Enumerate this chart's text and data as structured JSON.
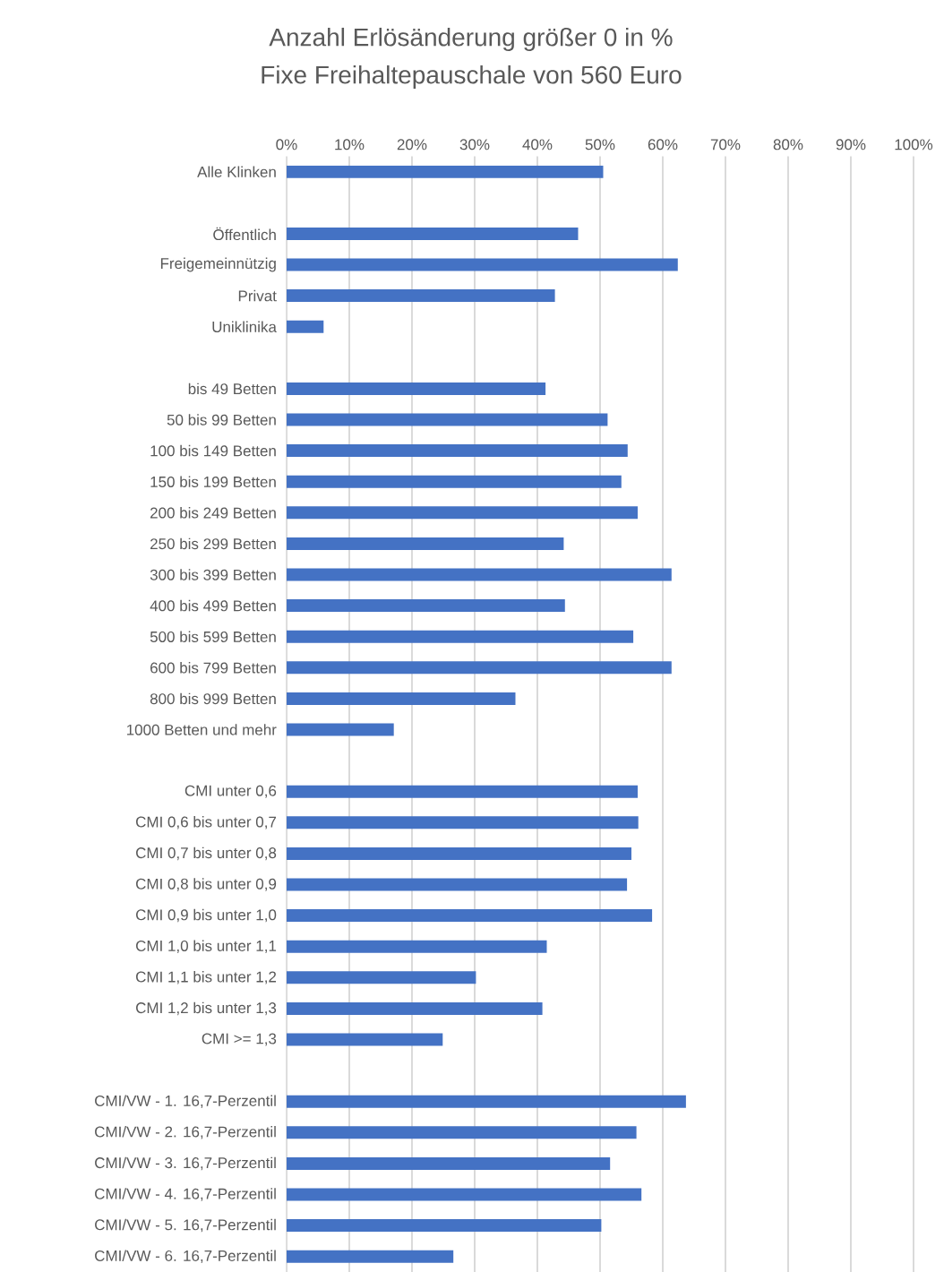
{
  "chart_data": {
    "type": "bar",
    "orientation": "horizontal",
    "title": "Anzahl Erlösänderung größer 0 in %",
    "subtitle": "Fixe Freihaltepauschale von 560 Euro",
    "categories": [
      "Alle Klinken",
      null,
      "Öffentlich",
      "Freigemeinnützig",
      "Privat",
      "Uniklinika",
      null,
      "bis 49 Betten",
      "50 bis 99 Betten",
      "100 bis 149 Betten",
      "150 bis 199 Betten",
      "200 bis 249 Betten",
      "250 bis 299 Betten",
      "300 bis 399 Betten",
      "400 bis 499 Betten",
      "500 bis 599 Betten",
      "600 bis 799 Betten",
      "800 bis 999 Betten",
      "1000 Betten und mehr",
      null,
      "CMI unter 0,6",
      "CMI 0,6 bis unter 0,7",
      "CMI 0,7 bis unter 0,8",
      "CMI 0,8 bis unter 0,9",
      "CMI 0,9 bis unter 1,0",
      "CMI 1,0 bis unter 1,1",
      "CMI 1,1 bis unter 1,2",
      "CMI 1,2 bis unter 1,3",
      "CMI >= 1,3",
      null,
      "CMI/VW - 1. 16,7-Perzentil",
      "CMI/VW - 2. 16,7-Perzentil",
      "CMI/VW - 3. 16,7-Perzentil",
      "CMI/VW - 4. 16,7-Perzentil",
      "CMI/VW - 5. 16,7-Perzentil",
      "CMI/VW - 6. 16,7-Perzentil"
    ],
    "values": [
      50.5,
      null,
      46.5,
      62.4,
      42.8,
      5.9,
      null,
      41.3,
      51.2,
      54.4,
      53.4,
      56.0,
      44.2,
      61.4,
      44.4,
      55.3,
      61.4,
      36.5,
      17.1,
      null,
      56.0,
      56.1,
      55.0,
      54.3,
      58.3,
      41.5,
      30.2,
      40.8,
      24.9,
      null,
      63.7,
      55.8,
      51.6,
      56.6,
      50.2,
      26.6
    ],
    "color": "#4472c4",
    "xlim": [
      0,
      100
    ],
    "xticks": [
      {
        "value": 0,
        "label": "0%"
      },
      {
        "value": 10,
        "label": "10%"
      },
      {
        "value": 20,
        "label": "20%"
      },
      {
        "value": 30,
        "label": "30%"
      },
      {
        "value": 40,
        "label": "40%"
      },
      {
        "value": 50,
        "label": "50%"
      },
      {
        "value": 60,
        "label": "60%"
      },
      {
        "value": 70,
        "label": "70%"
      },
      {
        "value": 80,
        "label": "80%"
      },
      {
        "value": 90,
        "label": "90%"
      },
      {
        "value": 100,
        "label": "100%"
      }
    ],
    "grid": "x"
  }
}
